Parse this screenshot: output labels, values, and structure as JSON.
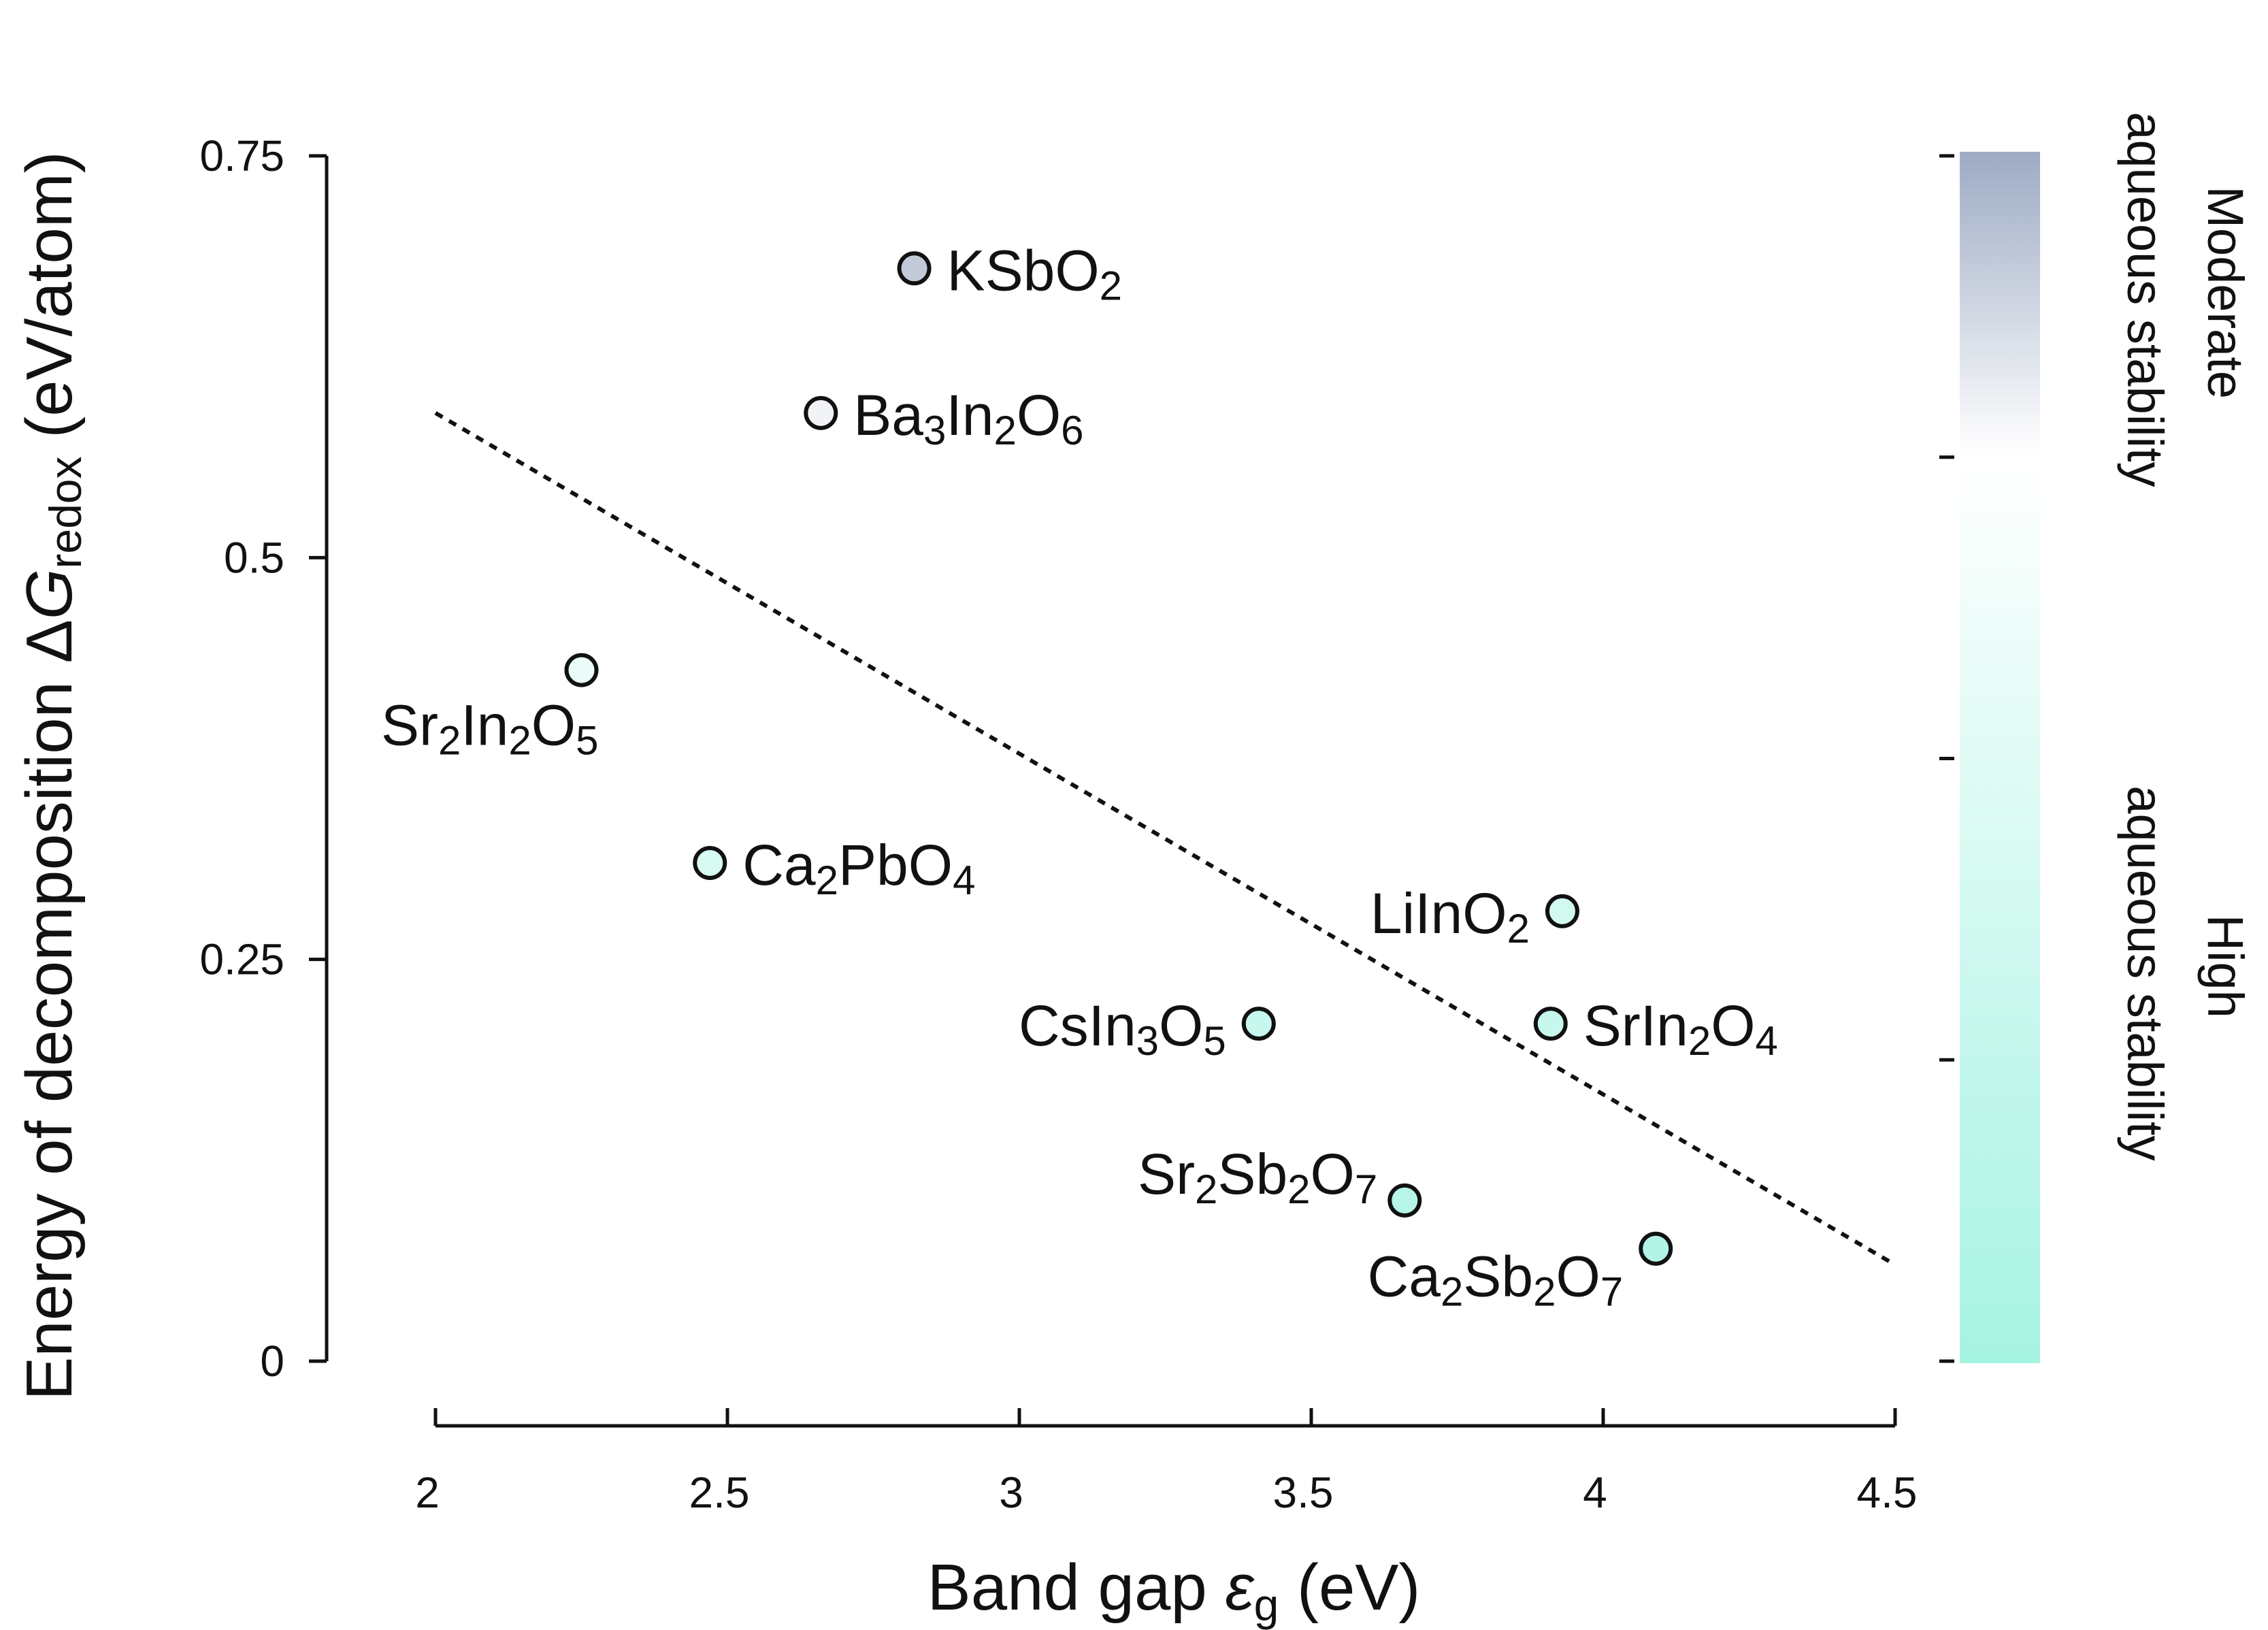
{
  "chart_data": {
    "type": "scatter",
    "xlabel": "Band gap εg (eV)",
    "ylabel": "Energy of decomposition ΔGredox (eV/atom)",
    "xlim": [
      2,
      4.5
    ],
    "ylim": [
      0,
      0.75
    ],
    "x_ticks": [
      "2",
      "2.5",
      "3",
      "3.5",
      "4",
      "4.5"
    ],
    "y_ticks": [
      "0",
      "0.25",
      "0.5",
      "0.75"
    ],
    "trendline": {
      "style": "dotted",
      "x": [
        2.0,
        4.5
      ],
      "y": [
        0.59,
        0.06
      ]
    },
    "points": [
      {
        "label": "KSbO2",
        "x": 2.82,
        "y": 0.68
      },
      {
        "label": "Ba3In2O6",
        "x": 2.66,
        "y": 0.59
      },
      {
        "label": "Sr2In2O5",
        "x": 2.25,
        "y": 0.43
      },
      {
        "label": "Ca2PbO4",
        "x": 2.47,
        "y": 0.31
      },
      {
        "label": "LiInO2",
        "x": 3.93,
        "y": 0.28
      },
      {
        "label": "CsIn3O5",
        "x": 3.41,
        "y": 0.21
      },
      {
        "label": "SrIn2O4",
        "x": 3.91,
        "y": 0.21
      },
      {
        "label": "Sr2Sb2O7",
        "x": 3.66,
        "y": 0.1
      },
      {
        "label": "Ca2Sb2O7",
        "x": 4.09,
        "y": 0.07
      }
    ],
    "colorbar": {
      "top_label": [
        "Moderate",
        "aqueous stability"
      ],
      "bottom_label": [
        "High",
        "aqueous stability"
      ],
      "color_top": "#9eabc4",
      "color_mid": "#ffffff",
      "color_bottom": "#a6f3e2"
    },
    "grid": false
  }
}
